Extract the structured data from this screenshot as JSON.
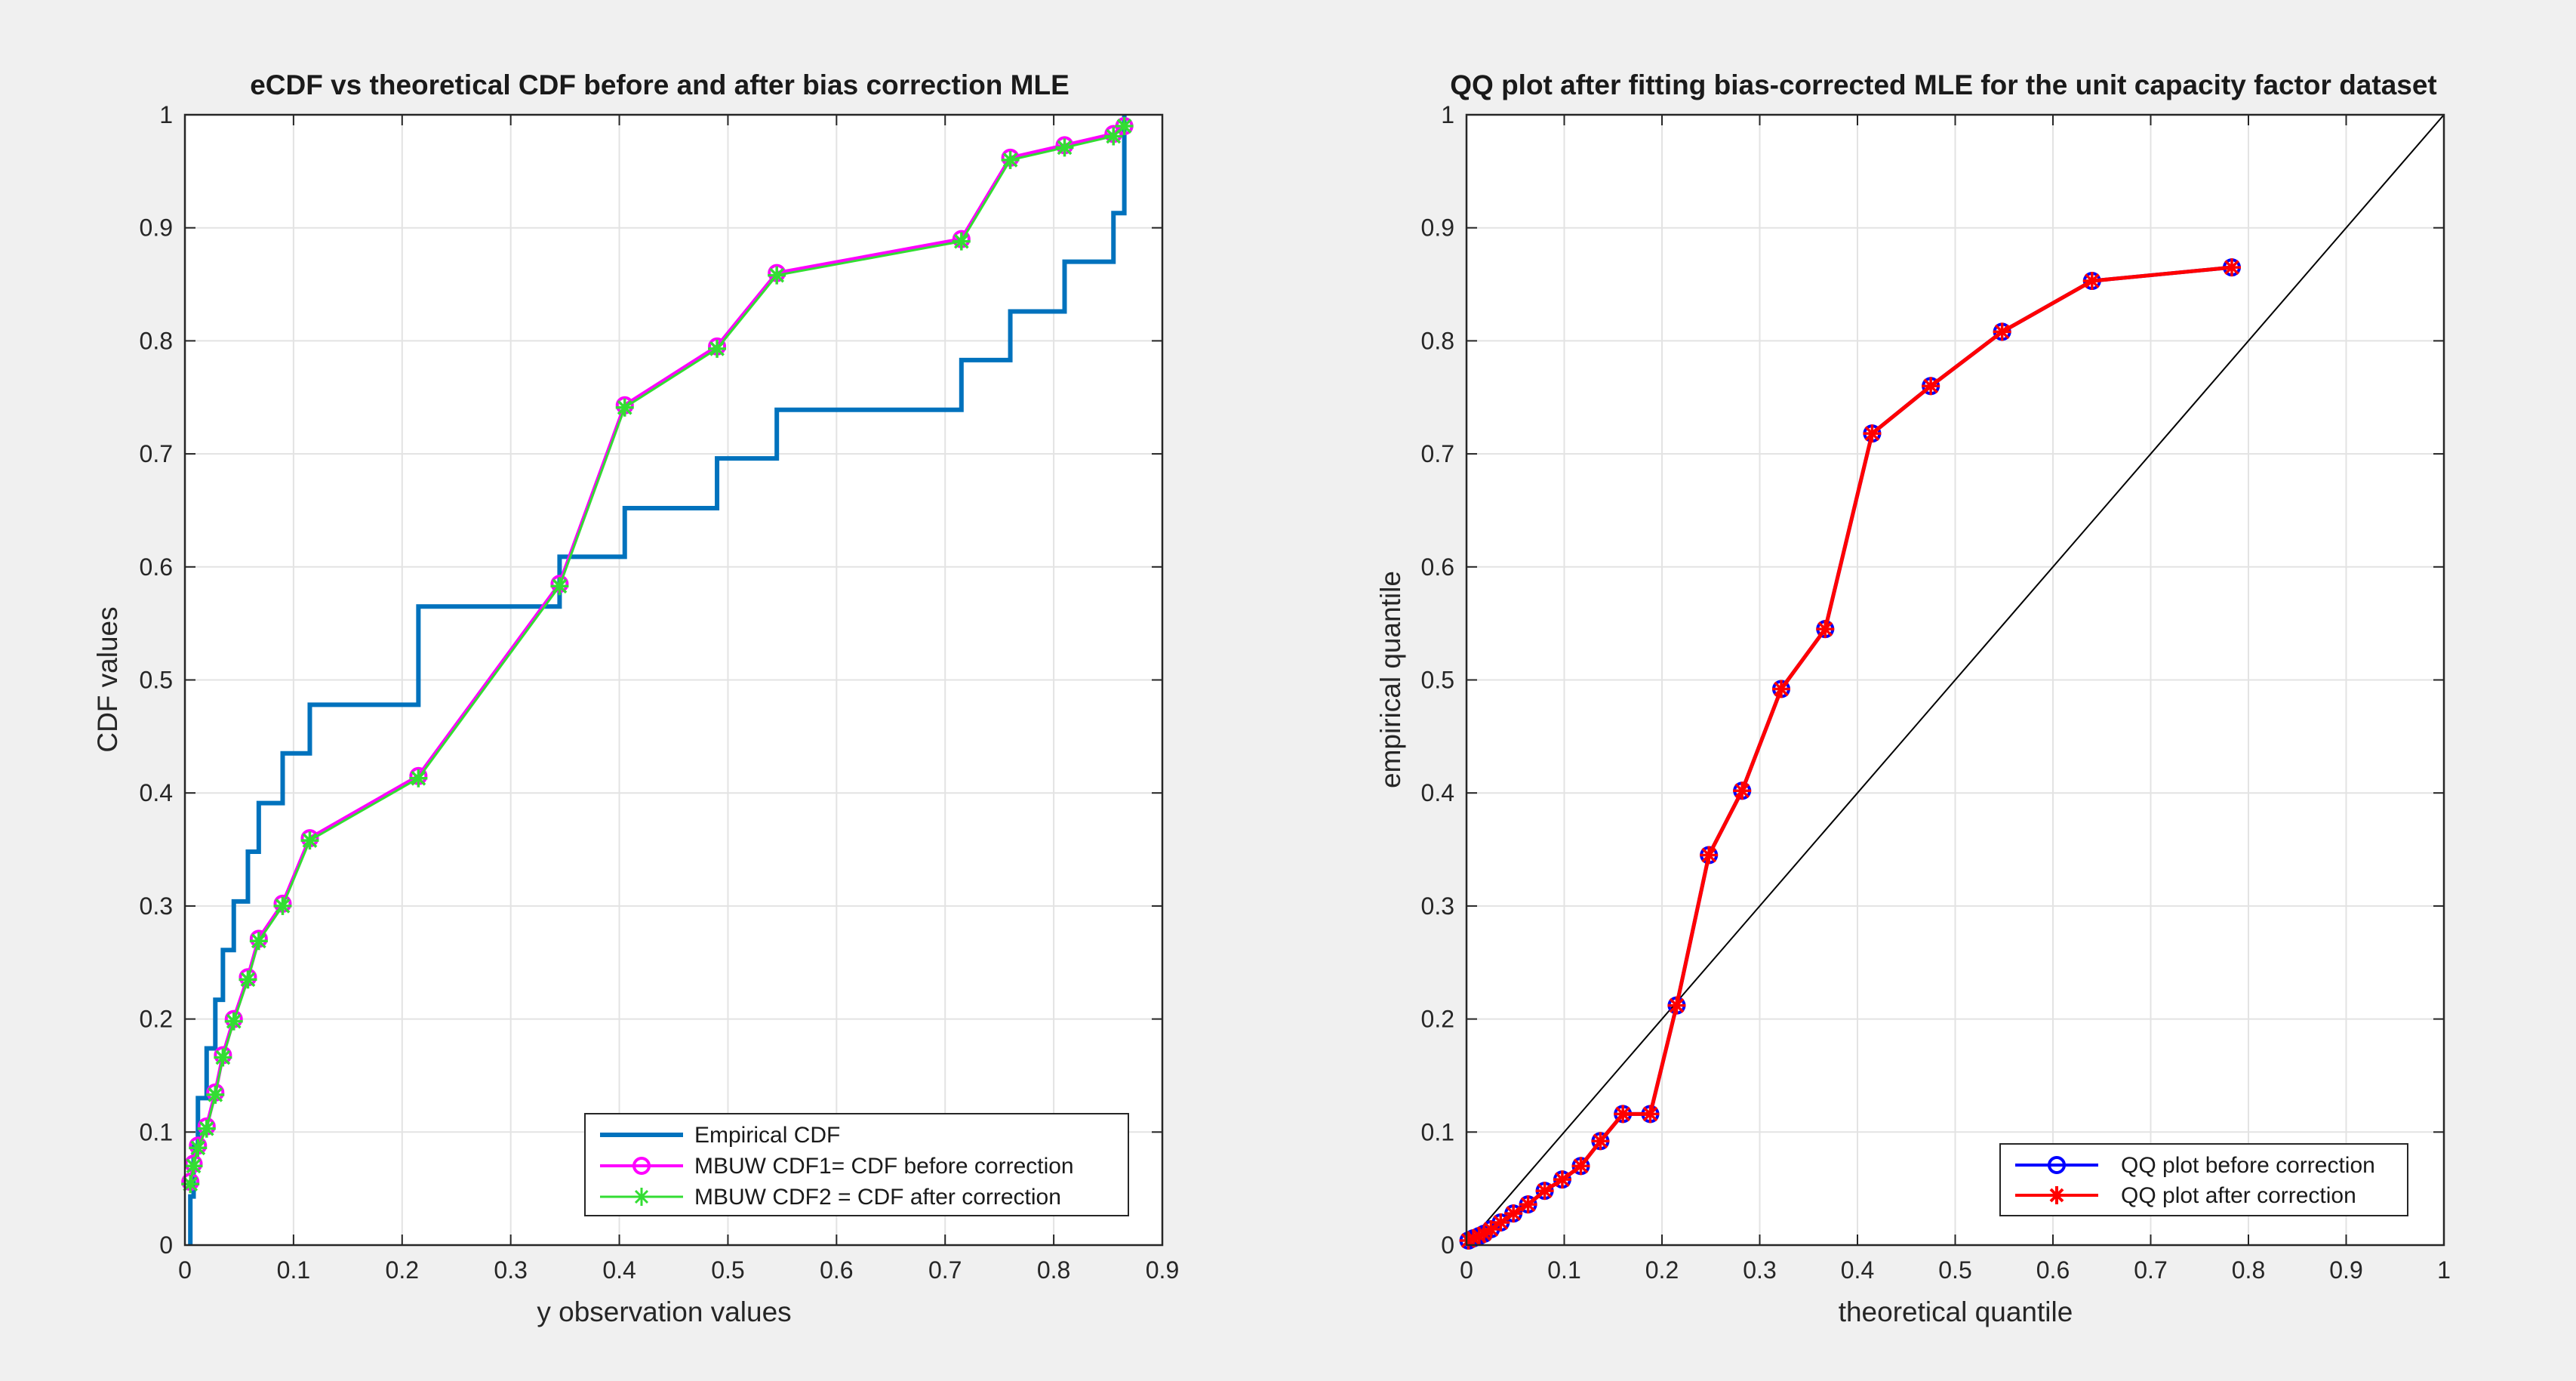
{
  "figure": {
    "background": "#f0f0f0",
    "axes_background": "#ffffff",
    "grid_color": "#e3e3e3"
  },
  "chart_data": [
    {
      "type": "line",
      "title": "eCDF vs theoretical CDF before and after bias correction MLE",
      "xlabel": "y observation values",
      "ylabel": "CDF values",
      "xlim": [
        0,
        0.9
      ],
      "ylim": [
        0,
        1
      ],
      "xticks": [
        0,
        0.1,
        0.2,
        0.3,
        0.4,
        0.5,
        0.6,
        0.7,
        0.8,
        0.9
      ],
      "xtick_labels": [
        "0",
        "0.1",
        "0.2",
        "0.3",
        "0.4",
        "0.5",
        "0.6",
        "0.7",
        "0.8",
        "0.9"
      ],
      "yticks": [
        0,
        0.1,
        0.2,
        0.3,
        0.4,
        0.5,
        0.6,
        0.7,
        0.8,
        0.9,
        1
      ],
      "ytick_labels": [
        "0",
        "0.1",
        "0.2",
        "0.3",
        "0.4",
        "0.5",
        "0.6",
        "0.7",
        "0.8",
        "0.9",
        "1"
      ],
      "grid": true,
      "legend_position": "bottom-right",
      "series": [
        {
          "name": "Empirical CDF",
          "style": "stairs",
          "color": "#0072bd",
          "marker": "none",
          "x": [
            0.005,
            0.008,
            0.012,
            0.02,
            0.028,
            0.035,
            0.045,
            0.058,
            0.068,
            0.09,
            0.115,
            0.215,
            0.345,
            0.405,
            0.49,
            0.545,
            0.715,
            0.76,
            0.81,
            0.855,
            0.865
          ],
          "y": [
            0.043,
            0.087,
            0.13,
            0.174,
            0.217,
            0.261,
            0.304,
            0.348,
            0.391,
            0.435,
            0.478,
            0.565,
            0.609,
            0.652,
            0.696,
            0.739,
            0.783,
            0.826,
            0.87,
            0.913,
            0.957
          ]
        },
        {
          "name": "MBUW CDF1= CDF before correction",
          "style": "line",
          "color": "#ff00ff",
          "marker": "circle",
          "x": [
            0.005,
            0.008,
            0.012,
            0.02,
            0.028,
            0.035,
            0.045,
            0.058,
            0.068,
            0.09,
            0.115,
            0.215,
            0.345,
            0.405,
            0.49,
            0.545,
            0.715,
            0.76,
            0.81,
            0.855,
            0.865
          ],
          "y": [
            0.056,
            0.072,
            0.088,
            0.105,
            0.135,
            0.168,
            0.2,
            0.237,
            0.271,
            0.302,
            0.36,
            0.415,
            0.585,
            0.743,
            0.795,
            0.86,
            0.89,
            0.962,
            0.973,
            0.983,
            0.99
          ]
        },
        {
          "name": "MBUW CDF2 = CDF after correction",
          "style": "line",
          "color": "#33dd33",
          "marker": "star",
          "x": [
            0.005,
            0.008,
            0.012,
            0.02,
            0.028,
            0.035,
            0.045,
            0.058,
            0.068,
            0.09,
            0.115,
            0.215,
            0.345,
            0.405,
            0.49,
            0.545,
            0.715,
            0.76,
            0.81,
            0.855,
            0.865
          ],
          "y": [
            0.054,
            0.07,
            0.086,
            0.103,
            0.133,
            0.166,
            0.198,
            0.235,
            0.269,
            0.3,
            0.358,
            0.413,
            0.583,
            0.741,
            0.793,
            0.858,
            0.888,
            0.96,
            0.971,
            0.981,
            0.99
          ]
        }
      ]
    },
    {
      "type": "line",
      "title": "QQ plot after fitting bias-corrected MLE for the unit capacity factor dataset",
      "xlabel": "theoretical quantile",
      "ylabel": "empirical quantile",
      "xlim": [
        0,
        1
      ],
      "ylim": [
        0,
        1
      ],
      "xticks": [
        0,
        0.1,
        0.2,
        0.3,
        0.4,
        0.5,
        0.6,
        0.7,
        0.8,
        0.9,
        1
      ],
      "xtick_labels": [
        "0",
        "0.1",
        "0.2",
        "0.3",
        "0.4",
        "0.5",
        "0.6",
        "0.7",
        "0.8",
        "0.9",
        "1"
      ],
      "yticks": [
        0,
        0.1,
        0.2,
        0.3,
        0.4,
        0.5,
        0.6,
        0.7,
        0.8,
        0.9,
        1
      ],
      "ytick_labels": [
        "0",
        "0.1",
        "0.2",
        "0.3",
        "0.4",
        "0.5",
        "0.6",
        "0.7",
        "0.8",
        "0.9",
        "1"
      ],
      "grid": true,
      "legend_position": "bottom-right",
      "reference_line": {
        "x": [
          0,
          1
        ],
        "y": [
          0,
          1
        ],
        "color": "#000000"
      },
      "series": [
        {
          "name": "QQ plot before correction",
          "style": "line",
          "color": "#0000ff",
          "marker": "circle",
          "x": [
            0.002,
            0.007,
            0.013,
            0.018,
            0.025,
            0.035,
            0.048,
            0.063,
            0.08,
            0.098,
            0.117,
            0.137,
            0.16,
            0.188,
            0.215,
            0.248,
            0.282,
            0.322,
            0.367,
            0.415,
            0.475,
            0.548,
            0.64,
            0.783
          ],
          "y": [
            0.004,
            0.006,
            0.008,
            0.01,
            0.014,
            0.02,
            0.028,
            0.036,
            0.048,
            0.058,
            0.07,
            0.092,
            0.116,
            0.116,
            0.212,
            0.345,
            0.402,
            0.492,
            0.545,
            0.718,
            0.76,
            0.808,
            0.853,
            0.865
          ]
        },
        {
          "name": "QQ plot after correction",
          "style": "line",
          "color": "#ff0000",
          "marker": "star",
          "x": [
            0.002,
            0.007,
            0.013,
            0.018,
            0.025,
            0.035,
            0.048,
            0.063,
            0.08,
            0.098,
            0.117,
            0.137,
            0.16,
            0.188,
            0.215,
            0.248,
            0.282,
            0.322,
            0.367,
            0.415,
            0.475,
            0.548,
            0.64,
            0.783
          ],
          "y": [
            0.004,
            0.006,
            0.008,
            0.01,
            0.014,
            0.02,
            0.028,
            0.036,
            0.048,
            0.058,
            0.07,
            0.092,
            0.116,
            0.116,
            0.212,
            0.345,
            0.402,
            0.492,
            0.545,
            0.718,
            0.76,
            0.808,
            0.853,
            0.865
          ]
        }
      ]
    }
  ]
}
